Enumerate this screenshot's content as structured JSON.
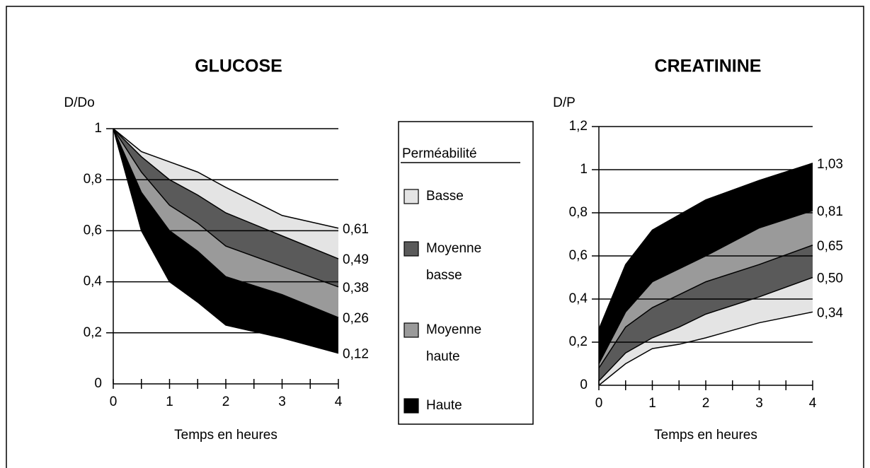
{
  "chart_data": [
    {
      "type": "area",
      "title": "GLUCOSE",
      "ylabel": "D/Do",
      "xlabel": "Temps en heures",
      "x": [
        0,
        0.5,
        1,
        1.5,
        2,
        3,
        4
      ],
      "xlim": [
        0,
        4
      ],
      "ylim": [
        0,
        1
      ],
      "xticks": [
        0,
        1,
        2,
        3,
        4
      ],
      "xminorticks": [
        0.5,
        1.5,
        2.5,
        3.5
      ],
      "yticks": [
        0,
        {
          "value": 0.2,
          "label": "0,2"
        },
        {
          "value": 0.4,
          "label": "0,4"
        },
        {
          "value": 0.6,
          "label": "0,6"
        },
        {
          "value": 0.8,
          "label": "0,8"
        },
        1
      ],
      "grid": true,
      "curves": [
        {
          "values": [
            1,
            0.91,
            0.87,
            0.83,
            0.77,
            0.66,
            0.61
          ],
          "value_label": "0,61"
        },
        {
          "values": [
            1,
            0.89,
            0.8,
            0.74,
            0.67,
            0.58,
            0.49
          ],
          "value_label": "0,49"
        },
        {
          "values": [
            1,
            0.83,
            0.7,
            0.63,
            0.54,
            0.46,
            0.38
          ],
          "value_label": "0,38"
        },
        {
          "values": [
            1,
            0.75,
            0.6,
            0.52,
            0.42,
            0.35,
            0.26
          ],
          "value_label": "0,26"
        },
        {
          "values": [
            1,
            0.6,
            0.4,
            0.32,
            0.23,
            0.18,
            0.12
          ],
          "value_label": "0,12"
        }
      ],
      "band_colors": [
        "#e4e4e4",
        "#5a5a5a",
        "#9a9a9a",
        "#000000"
      ]
    },
    {
      "type": "area",
      "title": "CREATININE",
      "ylabel": "D/P",
      "xlabel": "Temps en heures",
      "x": [
        0,
        0.5,
        1,
        1.5,
        2,
        3,
        4
      ],
      "xlim": [
        0,
        4
      ],
      "ylim": [
        0,
        1.2
      ],
      "xticks": [
        0,
        1,
        2,
        3,
        4
      ],
      "xminorticks": [
        0.5,
        1.5,
        2.5,
        3.5
      ],
      "yticks": [
        0,
        {
          "value": 0.2,
          "label": "0,2"
        },
        {
          "value": 0.4,
          "label": "0,4"
        },
        {
          "value": 0.6,
          "label": "0,6"
        },
        {
          "value": 0.8,
          "label": "0,8"
        },
        1,
        {
          "value": 1.2,
          "label": "1,2"
        }
      ],
      "grid": true,
      "curves": [
        {
          "values": [
            0.26,
            0.56,
            0.72,
            0.79,
            0.86,
            0.95,
            1.03
          ],
          "value_label": "1,03"
        },
        {
          "values": [
            0.1,
            0.34,
            0.48,
            0.54,
            0.6,
            0.73,
            0.81
          ],
          "value_label": "0,81"
        },
        {
          "values": [
            0.08,
            0.27,
            0.36,
            0.42,
            0.48,
            0.56,
            0.65
          ],
          "value_label": "0,65"
        },
        {
          "values": [
            0.02,
            0.15,
            0.22,
            0.27,
            0.33,
            0.41,
            0.5
          ],
          "value_label": "0,50"
        },
        {
          "values": [
            0,
            0.1,
            0.17,
            0.19,
            0.22,
            0.29,
            0.34
          ],
          "value_label": "0,34"
        }
      ],
      "band_colors": [
        "#000000",
        "#9a9a9a",
        "#5a5a5a",
        "#e4e4e4"
      ]
    }
  ],
  "legend": {
    "title": "Perméabilité",
    "entries": [
      {
        "lines": [
          "Basse"
        ],
        "color": "#e4e4e4"
      },
      {
        "lines": [
          "Moyenne",
          "basse"
        ],
        "color": "#5a5a5a"
      },
      {
        "lines": [
          "Moyenne",
          "haute"
        ],
        "color": "#9a9a9a"
      },
      {
        "lines": [
          "Haute"
        ],
        "color": "#000000"
      }
    ]
  }
}
